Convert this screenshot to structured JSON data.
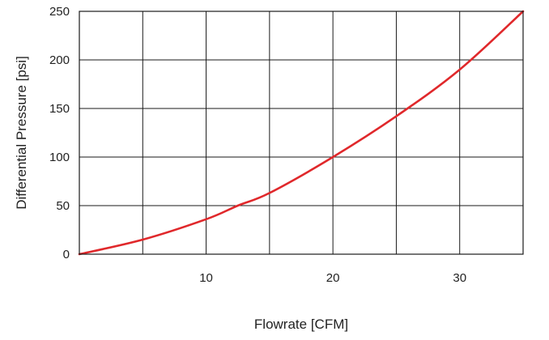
{
  "chart_data": {
    "type": "line",
    "title": "",
    "xlabel": "Flowrate [CFM]",
    "ylabel": "Differential Pressure [psi]",
    "xlim": [
      0,
      35
    ],
    "ylim": [
      0,
      250
    ],
    "x_ticks": [
      10,
      20,
      30
    ],
    "x_tick_labels": [
      "10",
      "20",
      "30"
    ],
    "x_gridlines": [
      5,
      10,
      15,
      20,
      25,
      30,
      35
    ],
    "y_ticks": [
      0,
      50,
      100,
      150,
      200,
      250
    ],
    "y_tick_labels": [
      "0",
      "50",
      "100",
      "150",
      "200",
      "250"
    ],
    "grid": true,
    "legend": "none",
    "series": [
      {
        "color": "#e0282b",
        "x": [
          0,
          5,
          10,
          12.5,
          15,
          20,
          25,
          30,
          35
        ],
        "y": [
          0,
          15,
          36,
          50,
          63,
          100,
          142,
          190,
          250
        ]
      }
    ]
  }
}
